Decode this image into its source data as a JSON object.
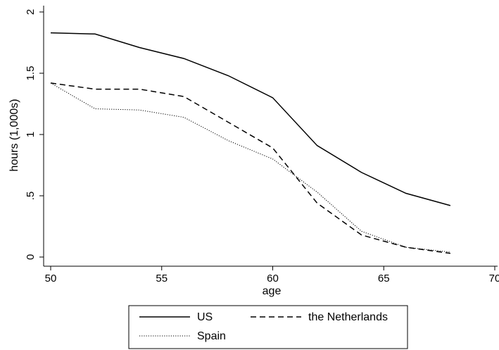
{
  "chart_data": {
    "type": "line",
    "xlabel": "age",
    "ylabel": "hours (1,000s)",
    "xlim": [
      50,
      70
    ],
    "ylim": [
      0,
      2
    ],
    "xticks": [
      50,
      55,
      60,
      65,
      70
    ],
    "xtick_labels": [
      "50",
      "55",
      "60",
      "65",
      "70"
    ],
    "yticks": [
      0,
      0.5,
      1,
      1.5,
      2
    ],
    "ytick_labels": [
      "0",
      ".5",
      "1",
      "1.5",
      "2"
    ],
    "grid": false,
    "legend": {
      "placement": "bottom",
      "columns": 2
    },
    "x": [
      50,
      52,
      54,
      56,
      58,
      60,
      62,
      64,
      66,
      68
    ],
    "series": [
      {
        "name": "US",
        "style": "solid",
        "color": "#000000",
        "values": [
          1.83,
          1.82,
          1.71,
          1.62,
          1.48,
          1.3,
          0.91,
          0.69,
          0.52,
          0.42
        ]
      },
      {
        "name": "the Netherlands",
        "style": "dashed",
        "color": "#000000",
        "values": [
          1.42,
          1.37,
          1.37,
          1.31,
          1.1,
          0.89,
          0.44,
          0.18,
          0.08,
          0.03
        ]
      },
      {
        "name": "Spain",
        "style": "dotted",
        "color": "#000000",
        "values": [
          1.42,
          1.21,
          1.2,
          1.14,
          0.95,
          0.8,
          0.53,
          0.21,
          0.08,
          0.04
        ]
      }
    ]
  }
}
